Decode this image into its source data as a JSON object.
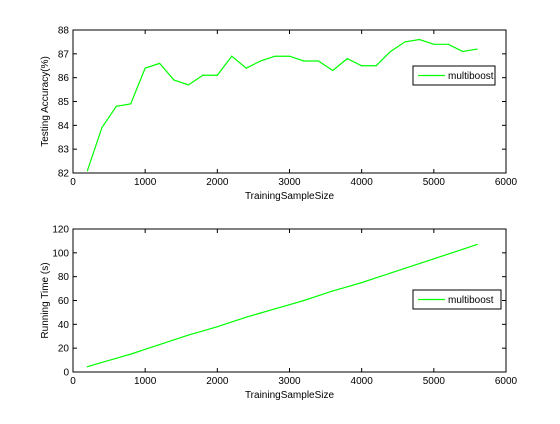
{
  "chart_data": [
    {
      "type": "line",
      "xlabel": "TrainingSampleSize",
      "ylabel": "Testing Accuracy(%)",
      "xlim": [
        0,
        6000
      ],
      "ylim": [
        82,
        88
      ],
      "xticks": [
        0,
        1000,
        2000,
        3000,
        4000,
        5000,
        6000
      ],
      "yticks": [
        82,
        83,
        84,
        85,
        86,
        87,
        88
      ],
      "grid": false,
      "legend_position": "right",
      "series": [
        {
          "name": "multiboost",
          "color": "#00ff00",
          "x": [
            200,
            400,
            600,
            800,
            1000,
            1200,
            1400,
            1600,
            1800,
            2000,
            2200,
            2400,
            2600,
            2800,
            3000,
            3200,
            3400,
            3600,
            3800,
            4000,
            4200,
            4400,
            4600,
            4800,
            5000,
            5200,
            5400,
            5600
          ],
          "y": [
            82.1,
            83.9,
            84.8,
            84.9,
            86.4,
            86.6,
            85.9,
            85.7,
            86.1,
            86.1,
            86.9,
            86.4,
            86.7,
            86.9,
            86.9,
            86.7,
            86.7,
            86.3,
            86.8,
            86.5,
            86.5,
            87.1,
            87.5,
            87.6,
            87.4,
            87.4,
            87.1,
            87.2
          ]
        }
      ]
    },
    {
      "type": "line",
      "xlabel": "TrainingSampleSize",
      "ylabel": "Running Time (s)",
      "xlim": [
        0,
        6000
      ],
      "ylim": [
        0,
        120
      ],
      "xticks": [
        0,
        1000,
        2000,
        3000,
        4000,
        5000,
        6000
      ],
      "yticks": [
        0,
        20,
        40,
        60,
        80,
        100,
        120
      ],
      "grid": false,
      "legend_position": "right",
      "series": [
        {
          "name": "multiboost",
          "color": "#00ff00",
          "x": [
            200,
            400,
            600,
            800,
            1000,
            1200,
            1400,
            1600,
            1800,
            2000,
            2200,
            2400,
            2600,
            2800,
            3000,
            3200,
            3400,
            3600,
            3800,
            4000,
            4200,
            4400,
            4600,
            4800,
            5000,
            5200,
            5400,
            5600
          ],
          "y": [
            4.5,
            8,
            11.5,
            15,
            19,
            23,
            27,
            31,
            34.5,
            38,
            42,
            46,
            49.5,
            53,
            56.5,
            60,
            64,
            68,
            71.5,
            75,
            79,
            83,
            87,
            91,
            95,
            99,
            103,
            107
          ]
        }
      ]
    }
  ]
}
